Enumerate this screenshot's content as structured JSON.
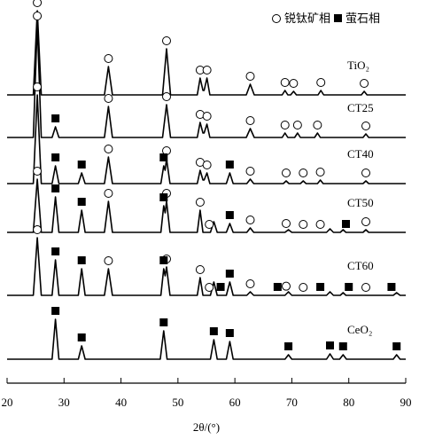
{
  "chart_data": {
    "type": "line",
    "xlabel": "2θ/(°)",
    "xlim": [
      20,
      90
    ],
    "xticks": [
      20,
      30,
      40,
      50,
      60,
      70,
      80,
      90
    ],
    "color": "#000000",
    "phases": [
      {
        "name": "锐钛矿相",
        "marker": "circle"
      },
      {
        "name": "萤石相",
        "marker": "square"
      }
    ],
    "series": [
      {
        "name": "TiO₂",
        "x": [
          20,
          24.6,
          25.3,
          26.0,
          37.1,
          37.8,
          38.5,
          47.3,
          48.0,
          48.7,
          53.4,
          53.9,
          54.4,
          54.6,
          55.1,
          55.6,
          62.0,
          62.7,
          63.4,
          68.3,
          68.8,
          69.3,
          69.8,
          70.3,
          70.8,
          74.6,
          75.1,
          75.6,
          82.2,
          82.7,
          83.2,
          90
        ],
        "values": [
          0,
          0,
          95,
          0,
          0,
          32,
          0,
          0,
          52,
          0,
          0,
          19,
          5,
          5,
          19,
          0,
          0,
          12,
          0,
          0,
          5,
          0,
          0,
          4,
          0,
          0,
          5,
          0,
          0,
          4,
          0,
          0
        ],
        "circle_x": [
          25.3,
          37.8,
          48.0,
          53.9,
          55.1,
          62.7,
          68.8,
          70.3,
          75.1,
          82.7
        ],
        "square_x": []
      },
      {
        "name": "CT25",
        "x": [
          20,
          24.6,
          25.3,
          26.0,
          27.9,
          28.5,
          29.1,
          37.1,
          37.8,
          38.5,
          47.3,
          48.0,
          48.7,
          53.4,
          53.9,
          54.4,
          54.6,
          55.1,
          55.6,
          62.0,
          62.7,
          63.4,
          68.3,
          68.8,
          69.3,
          70.5,
          71,
          71.5,
          74,
          74.5,
          75,
          82.5,
          83,
          83.5,
          90
        ],
        "values": [
          0,
          0,
          128,
          0,
          0,
          12,
          0,
          0,
          35,
          0,
          0,
          37,
          0,
          0,
          17,
          5,
          5,
          15,
          0,
          0,
          10,
          0,
          0,
          5,
          0,
          0,
          5,
          0,
          0,
          5,
          0,
          0,
          4,
          0,
          0
        ],
        "circle_x": [
          25.3,
          37.8,
          48.0,
          53.9,
          55.1,
          62.7,
          68.8,
          71,
          74.5,
          83
        ],
        "square_x": [
          28.5
        ]
      },
      {
        "name": "CT40",
        "x": [
          20,
          24.6,
          25.3,
          26.0,
          27.9,
          28.5,
          29.1,
          32.5,
          33.1,
          33.7,
          37.1,
          37.8,
          38.5,
          47.0,
          47.5,
          47.75,
          48.0,
          48.6,
          53.4,
          53.9,
          54.4,
          54.6,
          55.1,
          55.6,
          58.5,
          59.1,
          59.7,
          62.1,
          62.7,
          63.3,
          68.5,
          69,
          69.5,
          71.5,
          72,
          72.5,
          74.5,
          75,
          75.5,
          82.5,
          83,
          83.5,
          90
        ],
        "values": [
          0,
          0,
          100,
          0,
          0,
          20,
          0,
          0,
          12,
          0,
          0,
          30,
          0,
          0,
          20,
          15,
          28,
          0,
          0,
          15,
          4,
          4,
          12,
          0,
          0,
          12,
          0,
          0,
          5,
          0,
          0,
          3,
          0,
          0,
          3,
          0,
          0,
          4,
          0,
          0,
          3,
          0,
          0
        ],
        "circle_x": [
          25.3,
          37.8,
          48.0,
          53.9,
          55.1,
          62.7,
          69,
          72,
          75,
          83
        ],
        "square_x": [
          28.5,
          33.1,
          47.5,
          59.1
        ]
      },
      {
        "name": "CT50",
        "x": [
          20,
          24.6,
          25.3,
          26.0,
          27.9,
          28.5,
          29.1,
          32.5,
          33.1,
          33.7,
          37.1,
          37.8,
          38.5,
          47.0,
          47.5,
          47.75,
          48.0,
          48.6,
          53.4,
          53.9,
          54.4,
          55.7,
          56.3,
          56.9,
          58.5,
          59.1,
          59.7,
          62.1,
          62.7,
          63.3,
          68.8,
          69.4,
          70,
          76.1,
          76.7,
          77.3,
          78.5,
          79,
          79.5,
          82.5,
          83,
          83.5,
          90
        ],
        "values": [
          0,
          0,
          60,
          0,
          0,
          40,
          0,
          0,
          25,
          0,
          0,
          35,
          0,
          0,
          30,
          22,
          35,
          0,
          0,
          25,
          0,
          0,
          12,
          0,
          0,
          10,
          0,
          0,
          5,
          0,
          0,
          3,
          0,
          0,
          4,
          0,
          0,
          3,
          0,
          0,
          3,
          0,
          0
        ],
        "circle_x": [
          25.3,
          37.8,
          48.0,
          53.9,
          55.5,
          62.7,
          69,
          72,
          75,
          83
        ],
        "square_x": [
          28.5,
          33.1,
          47.5,
          59.1,
          79.5
        ]
      },
      {
        "name": "CT60",
        "x": [
          20,
          24.6,
          25.3,
          26.0,
          27.9,
          28.5,
          29.1,
          32.5,
          33.1,
          33.7,
          37.1,
          37.8,
          38.5,
          47.0,
          47.5,
          47.75,
          48.0,
          48.6,
          53.4,
          53.9,
          54.4,
          55.7,
          56.3,
          56.9,
          58.5,
          59.1,
          59.7,
          62.1,
          62.7,
          63.3,
          68.8,
          69.4,
          70,
          76.1,
          76.7,
          77.3,
          78.5,
          79,
          79.5,
          87.8,
          88.4,
          89,
          90
        ],
        "values": [
          0,
          0,
          65,
          0,
          0,
          40,
          0,
          0,
          30,
          0,
          0,
          30,
          0,
          0,
          30,
          22,
          32,
          0,
          0,
          20,
          0,
          0,
          15,
          0,
          0,
          15,
          0,
          0,
          4,
          0,
          0,
          4,
          0,
          0,
          4,
          0,
          0,
          3,
          0,
          0,
          3,
          0,
          0
        ],
        "circle_x": [
          25.3,
          37.8,
          48.0,
          53.9,
          55.5,
          62.7,
          69,
          72,
          83
        ],
        "square_x": [
          28.5,
          33.1,
          47.5,
          57.5,
          59.1,
          67.5,
          75,
          80,
          87.5
        ]
      },
      {
        "name": "CeO₂",
        "x": [
          20,
          27.9,
          28.5,
          29.1,
          32.5,
          33.1,
          33.7,
          46.9,
          47.5,
          48.1,
          55.7,
          56.3,
          56.9,
          58.5,
          59.1,
          59.7,
          68.8,
          69.4,
          70,
          76.1,
          76.7,
          77.3,
          78.4,
          79,
          79.6,
          87.8,
          88.4,
          89,
          90
        ],
        "values": [
          0,
          0,
          45,
          0,
          0,
          15,
          0,
          0,
          32,
          0,
          0,
          22,
          0,
          0,
          20,
          0,
          0,
          5,
          0,
          0,
          6,
          0,
          0,
          5,
          0,
          0,
          5,
          0,
          0
        ],
        "circle_x": [],
        "square_x": [
          28.5,
          33.1,
          47.5,
          56.3,
          59.1,
          69.4,
          76.7,
          79,
          88.4
        ]
      }
    ]
  }
}
